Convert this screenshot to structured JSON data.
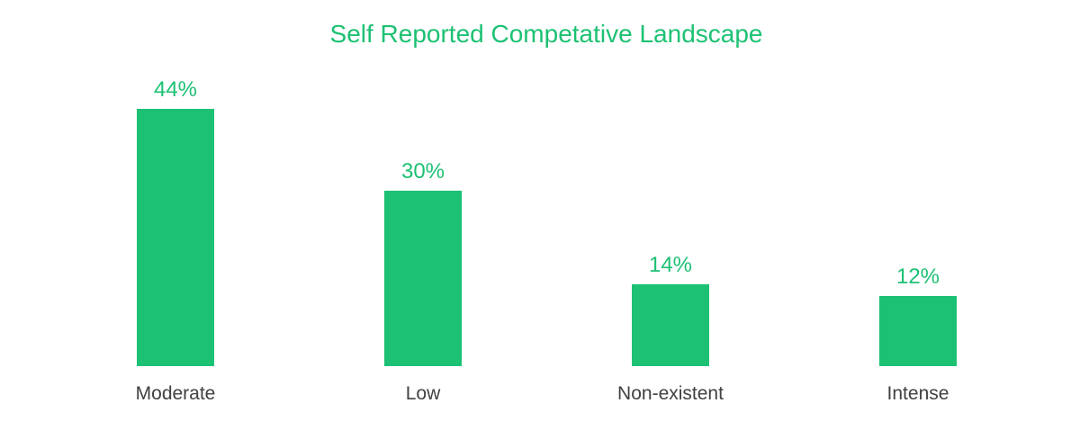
{
  "chart_data": {
    "type": "bar",
    "title": "Self Reported Competative Landscape",
    "categories": [
      "Moderate",
      "Low",
      "Non-existent",
      "Intense"
    ],
    "values": [
      44,
      30,
      14,
      12
    ],
    "value_labels": [
      "44%",
      "30%",
      "14%",
      "12%"
    ],
    "ylim": [
      0,
      44
    ],
    "grid": false,
    "legend": "none",
    "colors": {
      "bar": "#1dc174",
      "title": "#1dc174",
      "value_label": "#1dc174",
      "category_label": "#404040"
    }
  }
}
